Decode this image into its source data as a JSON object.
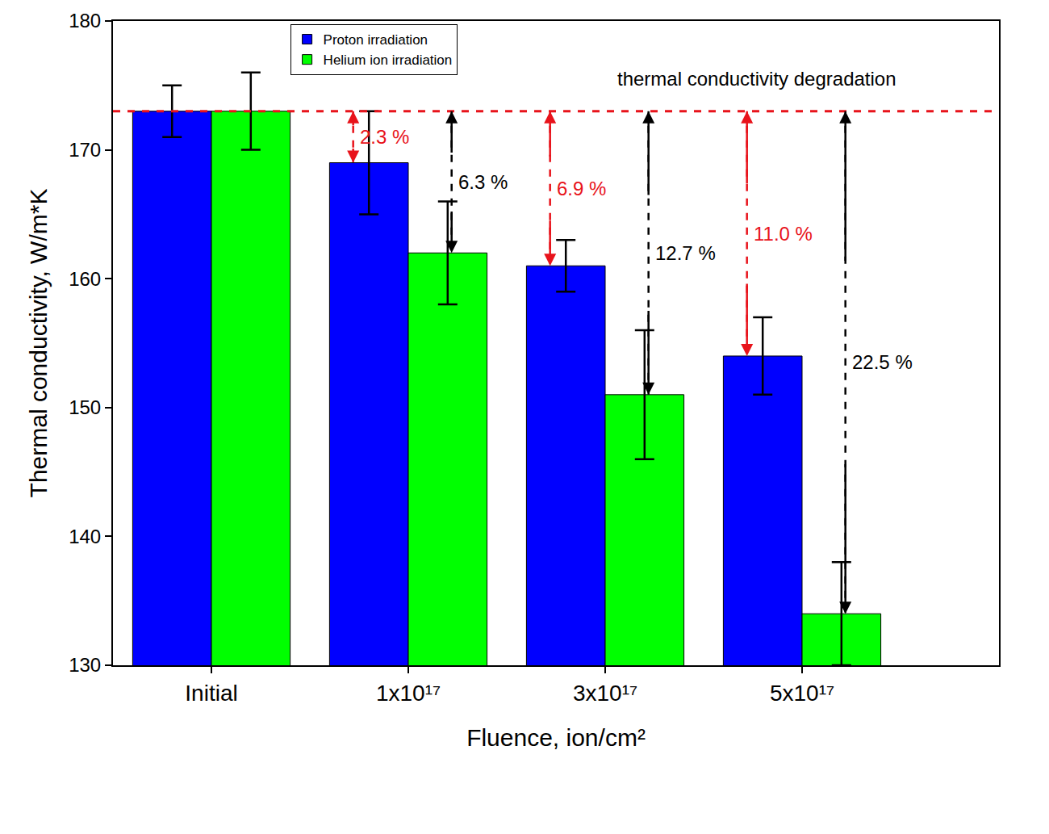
{
  "chart_data": {
    "type": "bar",
    "annotations": [
      "thermal conductivity degradation"
    ],
    "x_label": "Fluence, ion/cm²",
    "y_label": "Thermal conductivity, W/m*K",
    "categories": [
      "Initial",
      "1x10¹⁷",
      "3x10¹⁷",
      "5x10¹⁷"
    ],
    "series": [
      {
        "name": "Proton irradiation",
        "color": "#0000ff",
        "values": [
          173,
          169,
          161,
          154
        ],
        "errors": [
          2,
          4,
          2,
          3
        ],
        "degradation_labels": [
          null,
          "2.3 %",
          "6.9 %",
          "11.0 %"
        ]
      },
      {
        "name": "Helium ion irradiation",
        "color": "#00ff00",
        "values": [
          173,
          162,
          151,
          134
        ],
        "errors": [
          3,
          4,
          5,
          4
        ],
        "degradation_labels": [
          null,
          "6.3 %",
          "12.7 %",
          "22.5 %"
        ]
      }
    ],
    "reference_value": 173,
    "ylim": [
      130,
      180
    ],
    "yticks": [
      130,
      140,
      150,
      160,
      170,
      180
    ],
    "grid": false,
    "legend": "upper left"
  }
}
